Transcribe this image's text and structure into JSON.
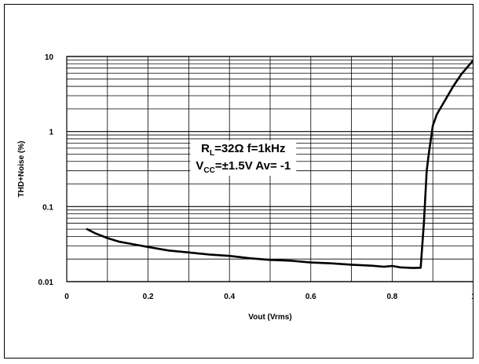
{
  "chart_data": {
    "type": "line",
    "title": "",
    "xlabel": "Vout (Vrms)",
    "ylabel": "THD+Noise (%)",
    "xlim": [
      0,
      1
    ],
    "ylim": [
      0.01,
      10
    ],
    "yscale": "log",
    "grid": true,
    "x_ticks": [
      "0",
      "0.2",
      "0.4",
      "0.6",
      "0.8",
      "1"
    ],
    "y_ticks": [
      "0.01",
      "0.1",
      "1",
      "10"
    ],
    "annotation": {
      "line1_main": "R",
      "line1_sub": "L",
      "line1_rest": "=32Ω  f=1kHz",
      "line2_main": "V",
      "line2_sub": "CC",
      "line2_rest": "=±1.5V  Av= -1"
    },
    "series": [
      {
        "x": [
          0.05,
          0.07,
          0.1,
          0.13,
          0.17,
          0.2,
          0.25,
          0.3,
          0.35,
          0.4,
          0.45,
          0.5,
          0.55,
          0.6,
          0.65,
          0.7,
          0.75,
          0.78,
          0.8,
          0.82,
          0.85,
          0.87,
          0.878,
          0.885,
          0.89,
          0.9,
          0.91,
          0.93,
          0.95,
          0.97,
          1.0
        ],
        "y": [
          0.05,
          0.044,
          0.038,
          0.034,
          0.031,
          0.029,
          0.026,
          0.0245,
          0.023,
          0.022,
          0.0205,
          0.0195,
          0.019,
          0.018,
          0.0175,
          0.0168,
          0.0163,
          0.0158,
          0.0162,
          0.0155,
          0.0152,
          0.0153,
          0.06,
          0.3,
          0.5,
          1.2,
          1.7,
          2.6,
          4.0,
          5.8,
          9.0
        ]
      }
    ]
  }
}
